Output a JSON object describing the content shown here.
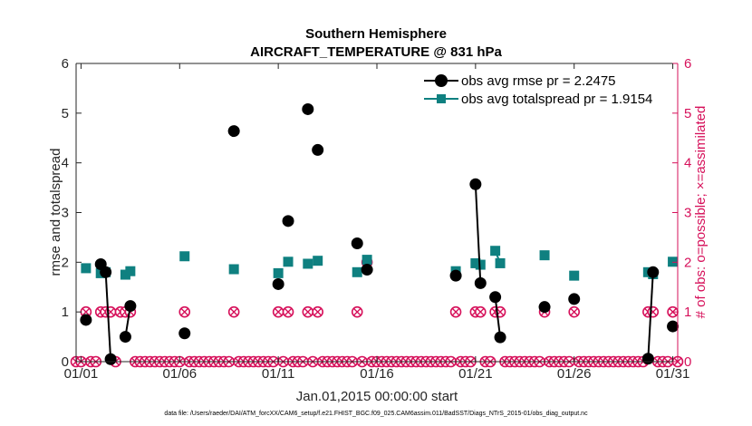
{
  "chart_data": {
    "type": "line",
    "title": "Southern Hemisphere",
    "subtitle": "AIRCRAFT_TEMPERATURE @ 831 hPa",
    "xlabel": "Jan.01,2015 00:00:00 start",
    "ylabel": "rmse and totalspread",
    "y2label": "# of obs: o=possible; ×=assimilated",
    "xlim": [
      0.75,
      31.25
    ],
    "ylim": [
      0,
      6
    ],
    "y2lim": [
      0,
      6
    ],
    "x_ticks": [
      1,
      6,
      11,
      16,
      21,
      26,
      31
    ],
    "x_tick_labels": [
      "01/01",
      "01/06",
      "01/11",
      "01/16",
      "01/21",
      "01/26",
      "01/31"
    ],
    "y_ticks": [
      0,
      1,
      2,
      3,
      4,
      5,
      6
    ],
    "y_tick_labels": [
      "0",
      "1",
      "2",
      "3",
      "4",
      "5",
      "6"
    ],
    "y2_ticks": [
      0,
      1,
      2,
      3,
      4,
      5,
      6
    ],
    "y2_tick_labels": [
      "0",
      "1",
      "2",
      "3",
      "4",
      "5",
      "6"
    ],
    "legend_position": "top-right",
    "footnote": "data file: /Users/raeder/DAI/ATM_forcXX/CAM6_setup/f.e21.FHIST_BGC.f09_025.CAM6assim.011/BadSST/Diags_NTrS_2015-01/obs_diag_output.nc",
    "colors": {
      "rmse": "#000000",
      "spread": "#0f8080",
      "obs": "#d6105a",
      "axis": "#262626"
    },
    "series": [
      {
        "name": "obs avg rmse pr = 2.2475",
        "x": [
          1.25,
          2.0,
          2.25,
          2.5,
          2.75,
          3.0,
          3.25,
          3.5,
          6.25,
          8.75,
          11.0,
          11.5,
          12.5,
          13.0,
          15.0,
          15.5,
          20.0,
          21.0,
          21.25,
          22.0,
          22.25,
          24.5,
          26.0,
          29.75,
          30.0,
          31.0
        ],
        "y": [
          0.84,
          1.96,
          1.8,
          0.05,
          null,
          null,
          0.5,
          1.12,
          0.57,
          4.64,
          1.56,
          2.83,
          5.08,
          4.26,
          2.38,
          1.85,
          1.73,
          3.57,
          1.58,
          1.3,
          0.49,
          1.1,
          1.26,
          0.06,
          1.8,
          0.71
        ]
      },
      {
        "name": "obs avg totalspread pr = 1.9154",
        "x": [
          1.25,
          2.0,
          2.25,
          2.5,
          2.75,
          3.0,
          3.25,
          3.5,
          6.25,
          8.75,
          11.0,
          11.5,
          12.5,
          13.0,
          15.0,
          15.5,
          20.0,
          21.0,
          21.25,
          22.0,
          22.25,
          24.5,
          26.0,
          29.75,
          30.0,
          31.0
        ],
        "y": [
          1.88,
          1.78,
          1.8,
          null,
          null,
          null,
          1.75,
          1.82,
          2.12,
          1.86,
          1.78,
          2.01,
          1.97,
          2.03,
          1.8,
          2.05,
          1.82,
          1.98,
          1.95,
          2.23,
          1.98,
          2.14,
          1.73,
          1.8,
          1.76,
          2.01
        ]
      },
      {
        "name": "# of obs possible",
        "x": [
          0.75,
          1.0,
          1.25,
          1.5,
          1.75,
          2.0,
          2.25,
          2.5,
          2.75,
          3.0,
          3.25,
          3.5,
          3.75,
          4.0,
          4.25,
          4.5,
          4.75,
          5.0,
          5.25,
          5.5,
          5.75,
          6.0,
          6.25,
          6.5,
          6.75,
          7.0,
          7.25,
          7.5,
          7.75,
          8.0,
          8.25,
          8.5,
          8.75,
          9.0,
          9.25,
          9.5,
          9.75,
          10.0,
          10.25,
          10.5,
          10.75,
          11.0,
          11.25,
          11.5,
          11.75,
          12.0,
          12.25,
          12.5,
          12.75,
          13.0,
          13.25,
          13.5,
          13.75,
          14.0,
          14.25,
          14.5,
          14.75,
          15.0,
          15.25,
          15.5,
          15.75,
          16.0,
          16.25,
          16.5,
          16.75,
          17.0,
          17.25,
          17.5,
          17.75,
          18.0,
          18.25,
          18.5,
          18.75,
          19.0,
          19.25,
          19.5,
          19.75,
          20.0,
          20.25,
          20.5,
          20.75,
          21.0,
          21.25,
          21.5,
          21.75,
          22.0,
          22.25,
          22.5,
          22.75,
          23.0,
          23.25,
          23.5,
          23.75,
          24.0,
          24.25,
          24.5,
          24.75,
          25.0,
          25.25,
          25.5,
          25.75,
          26.0,
          26.25,
          26.5,
          26.75,
          27.0,
          27.25,
          27.5,
          27.75,
          28.0,
          28.25,
          28.5,
          28.75,
          29.0,
          29.25,
          29.5,
          29.75,
          30.0,
          30.25,
          30.5,
          30.75,
          31.0,
          31.25
        ],
        "y": [
          0,
          0,
          1,
          0,
          0,
          1,
          1,
          1,
          0,
          1,
          1,
          1,
          0,
          0,
          0,
          0,
          0,
          0,
          0,
          0,
          0,
          0,
          1,
          0,
          0,
          0,
          0,
          0,
          0,
          0,
          0,
          0,
          1,
          0,
          0,
          0,
          0,
          0,
          0,
          0,
          0,
          1,
          0,
          1,
          0,
          0,
          0,
          1,
          0,
          1,
          0,
          0,
          0,
          0,
          0,
          0,
          0,
          1,
          0,
          2,
          0,
          0,
          0,
          0,
          0,
          0,
          0,
          0,
          0,
          0,
          0,
          0,
          0,
          0,
          0,
          0,
          0,
          1,
          0,
          0,
          0,
          1,
          1,
          0,
          0,
          1,
          1,
          0,
          0,
          0,
          0,
          0,
          0,
          0,
          0,
          1,
          0,
          0,
          0,
          0,
          0,
          1,
          0,
          0,
          0,
          0,
          0,
          0,
          0,
          0,
          0,
          0,
          0,
          0,
          0,
          0,
          1,
          1,
          0,
          0,
          0,
          1,
          0
        ]
      }
    ]
  }
}
